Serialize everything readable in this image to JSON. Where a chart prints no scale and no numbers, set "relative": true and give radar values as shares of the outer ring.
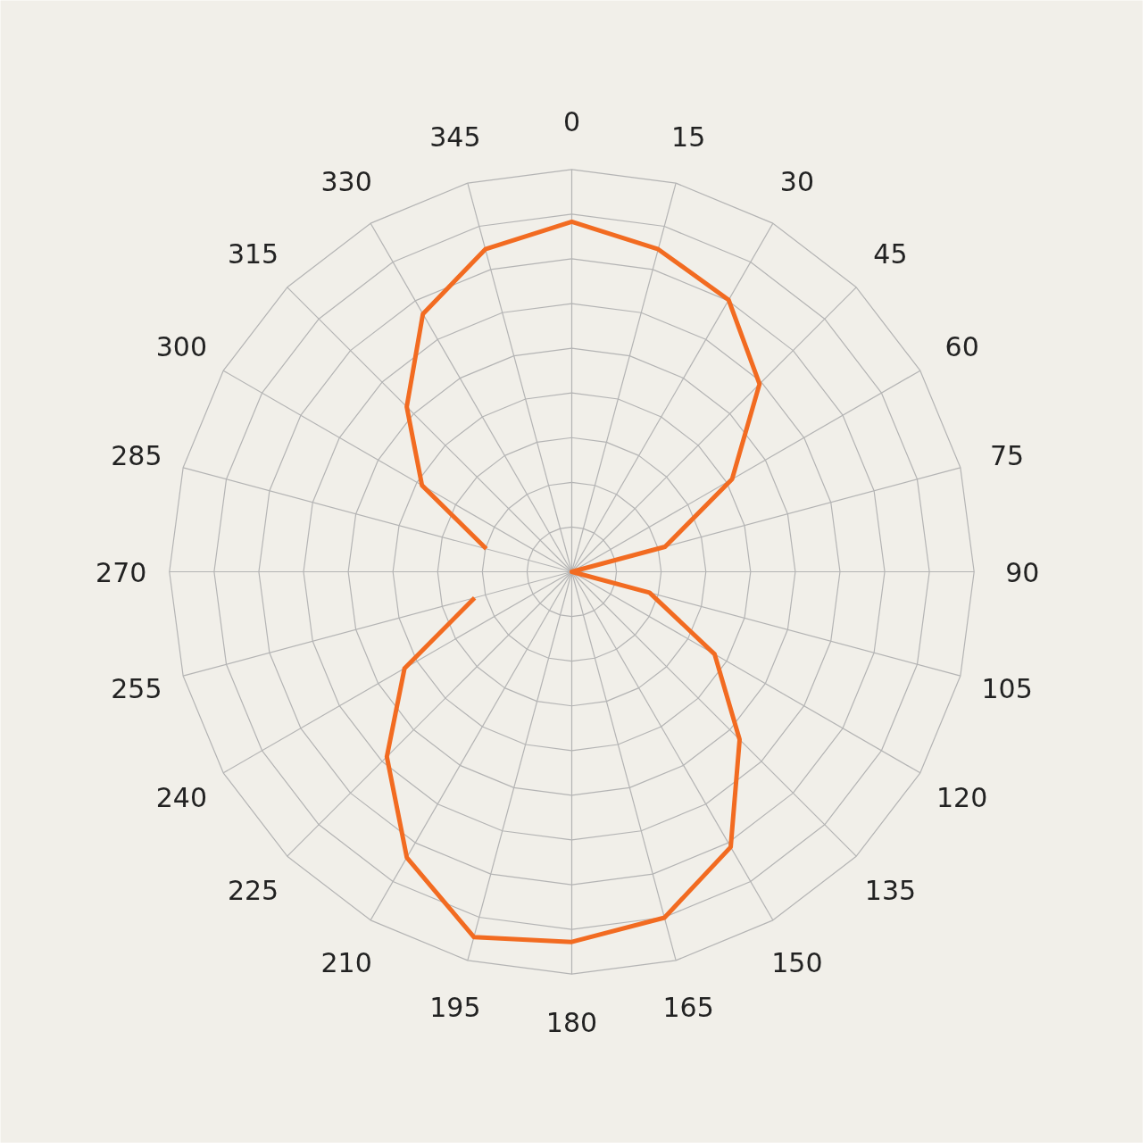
{
  "chart_data": {
    "type": "radar",
    "relative": true,
    "grid": true,
    "line_style": "solid",
    "marker": "none",
    "categories": [
      "0",
      "15",
      "30",
      "45",
      "60",
      "75",
      "90",
      "105",
      "120",
      "135",
      "150",
      "165",
      "180",
      "195",
      "210",
      "225",
      "240",
      "255",
      "270",
      "285",
      "300",
      "315",
      "330",
      "345"
    ],
    "series": [
      {
        "color": "#f26b21",
        "values": [
          0.87,
          0.83,
          0.78,
          0.66,
          0.46,
          0.24,
          0.0,
          0.2,
          0.41,
          0.59,
          0.79,
          0.89,
          0.92,
          0.94,
          0.82,
          0.65,
          0.48,
          0.25,
          null,
          0.22,
          0.43,
          0.58,
          0.74,
          0.83
        ]
      }
    ]
  }
}
